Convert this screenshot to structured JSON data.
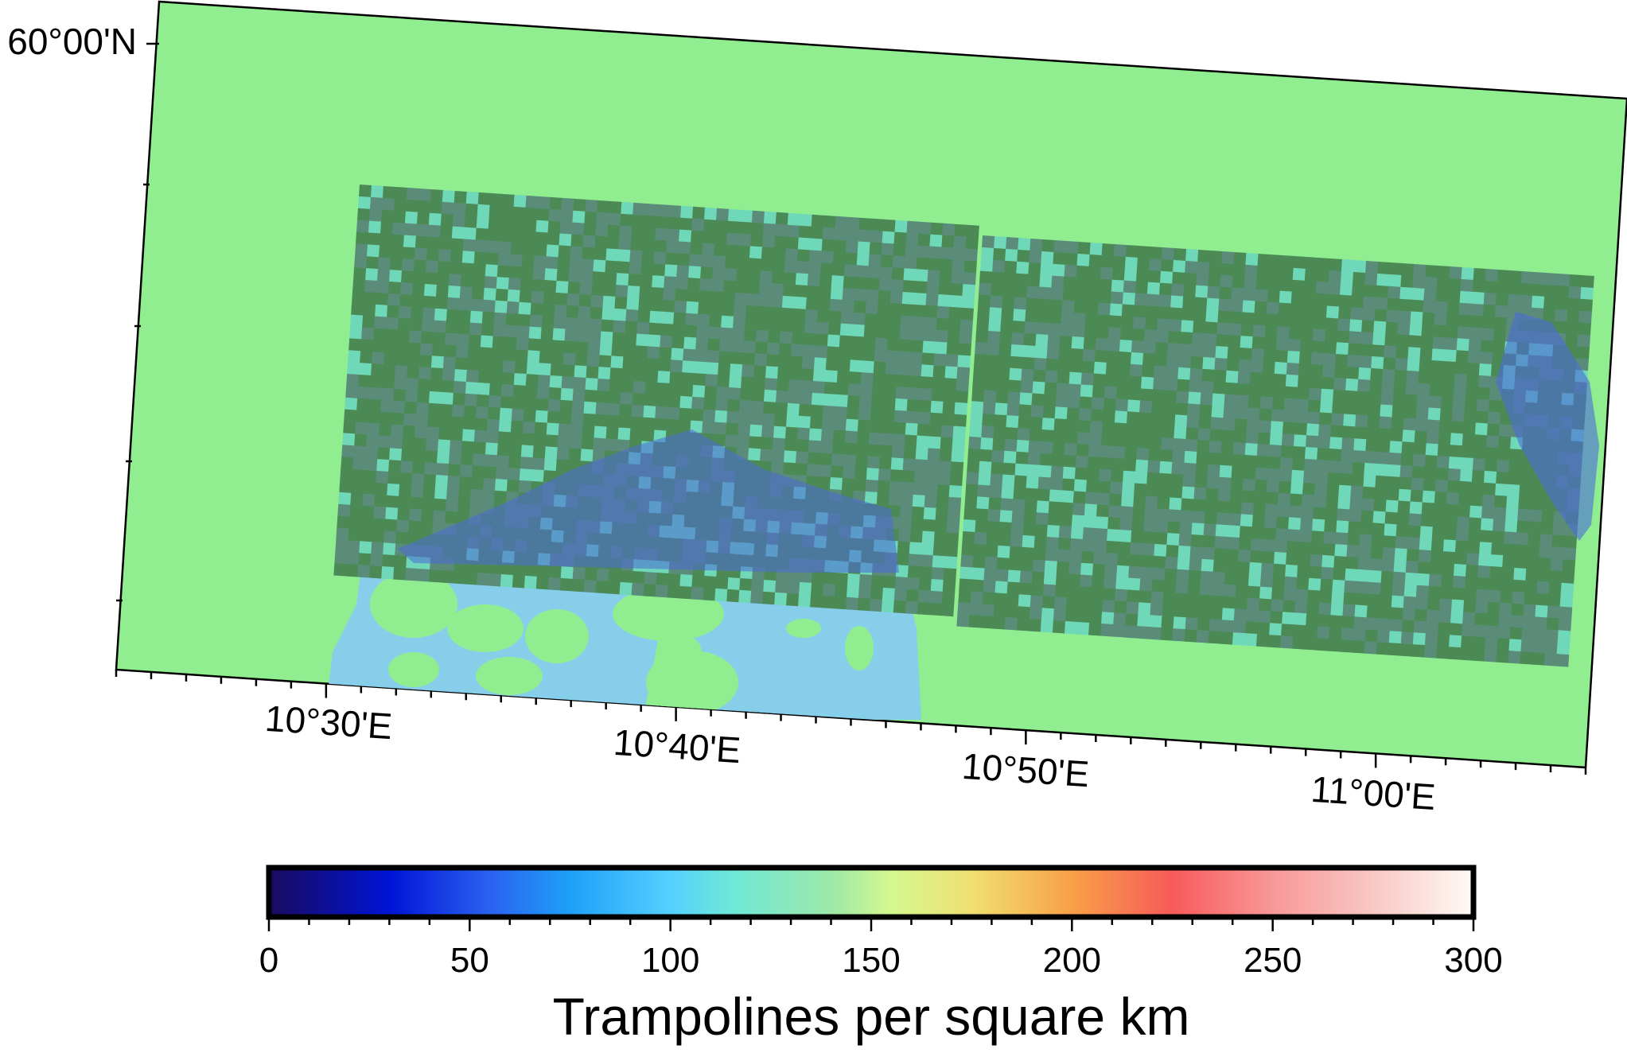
{
  "map": {
    "lat_label": "60°00'N",
    "lon_labels": [
      "10°30'E",
      "10°40'E",
      "10°50'E",
      "11°00'E"
    ],
    "colors": {
      "background": "#90ee90",
      "water": "#87ceeb",
      "data_base": "#5b8c7a",
      "data_dark": "#4c8a55",
      "data_bright": "#6fd8b8",
      "data_blue": "#4a6ad8"
    }
  },
  "colorbar": {
    "title": "Trampolines per square km",
    "tick_labels": [
      "0",
      "50",
      "100",
      "150",
      "200",
      "250",
      "300"
    ],
    "range": [
      0,
      300
    ],
    "stops": [
      {
        "value": 0,
        "color": "#1a0b5e"
      },
      {
        "value": 30,
        "color": "#0014d6"
      },
      {
        "value": 55,
        "color": "#2a62f0"
      },
      {
        "value": 75,
        "color": "#1ea0f8"
      },
      {
        "value": 100,
        "color": "#55d0ff"
      },
      {
        "value": 115,
        "color": "#6ee8d8"
      },
      {
        "value": 140,
        "color": "#9de8a8"
      },
      {
        "value": 155,
        "color": "#d4f890"
      },
      {
        "value": 175,
        "color": "#f0e070"
      },
      {
        "value": 200,
        "color": "#f8a048"
      },
      {
        "value": 225,
        "color": "#f85a5a"
      },
      {
        "value": 250,
        "color": "#f89898"
      },
      {
        "value": 275,
        "color": "#f8c8c4"
      },
      {
        "value": 300,
        "color": "#fffaf6"
      }
    ]
  }
}
